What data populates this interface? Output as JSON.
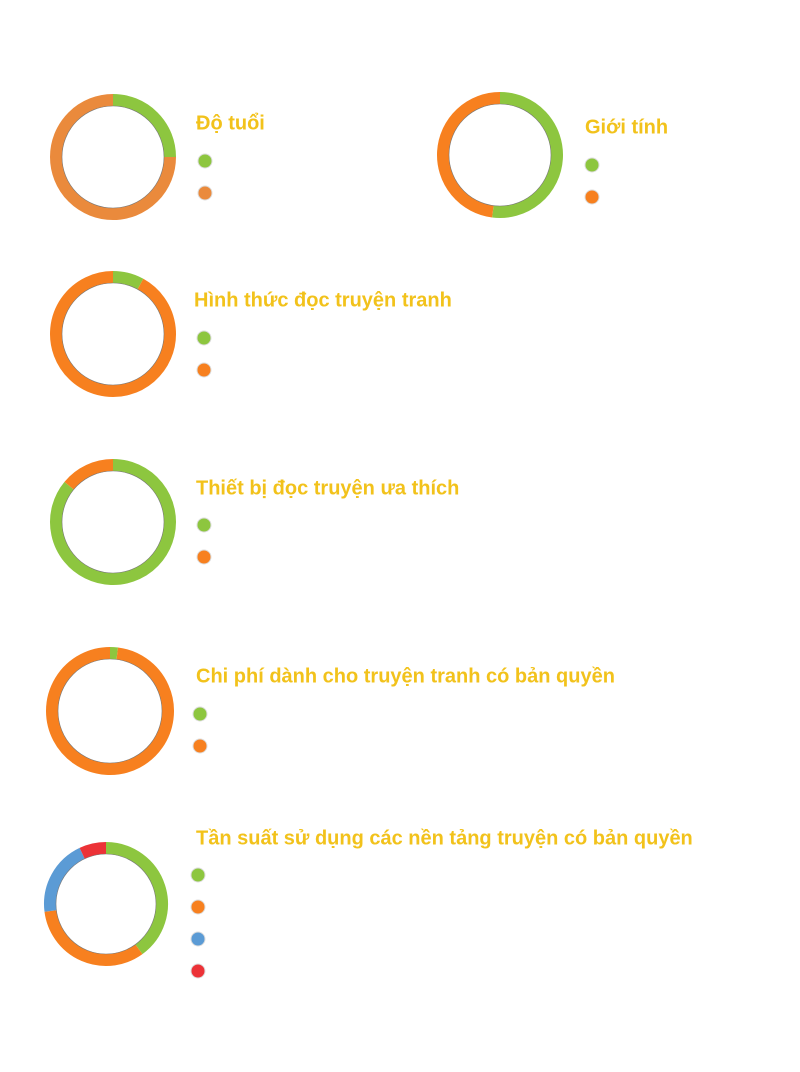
{
  "chart_data": [
    {
      "type": "pie",
      "title": "Độ tuổi",
      "values": [
        25,
        75
      ],
      "colors": [
        "#8dc63f",
        "#ea8a3c"
      ]
    },
    {
      "type": "pie",
      "title": "Giới tính",
      "values": [
        52,
        48
      ],
      "colors": [
        "#8dc63f",
        "#f7801f"
      ]
    },
    {
      "type": "pie",
      "title": "Hình thức đọc truyện tranh",
      "values": [
        8,
        92
      ],
      "colors": [
        "#8dc63f",
        "#f7801f"
      ]
    },
    {
      "type": "pie",
      "title": "Thiết bị đọc truyện ưa thích",
      "values": [
        86,
        14
      ],
      "colors": [
        "#8dc63f",
        "#f7801f"
      ]
    },
    {
      "type": "pie",
      "title": "Chi phí dành cho truyện tranh có bản quyền",
      "values": [
        2,
        98
      ],
      "colors": [
        "#8dc63f",
        "#f7801f"
      ]
    },
    {
      "type": "pie",
      "title": "Tần suất sử dụng các nền tảng truyện có bản quyền",
      "values": [
        40,
        33,
        20,
        7
      ],
      "colors": [
        "#8dc63f",
        "#f7801f",
        "#5b9bd5",
        "#ec3237"
      ]
    }
  ]
}
